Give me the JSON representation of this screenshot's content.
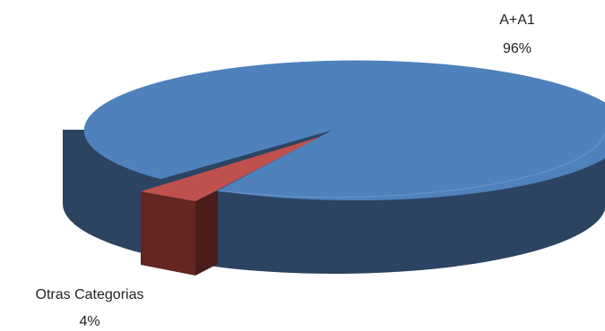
{
  "chart_data": {
    "type": "pie",
    "style": "3d",
    "title": "",
    "legend": "none",
    "slices": [
      {
        "label": "A+A1",
        "percent_label": "96%",
        "value": 96,
        "color": "#4F81BD",
        "side_color": "#2C4461"
      },
      {
        "label": "Otras Categorias",
        "percent_label": "4%",
        "value": 4,
        "color": "#C0504D",
        "side_color": "#632623"
      }
    ]
  }
}
